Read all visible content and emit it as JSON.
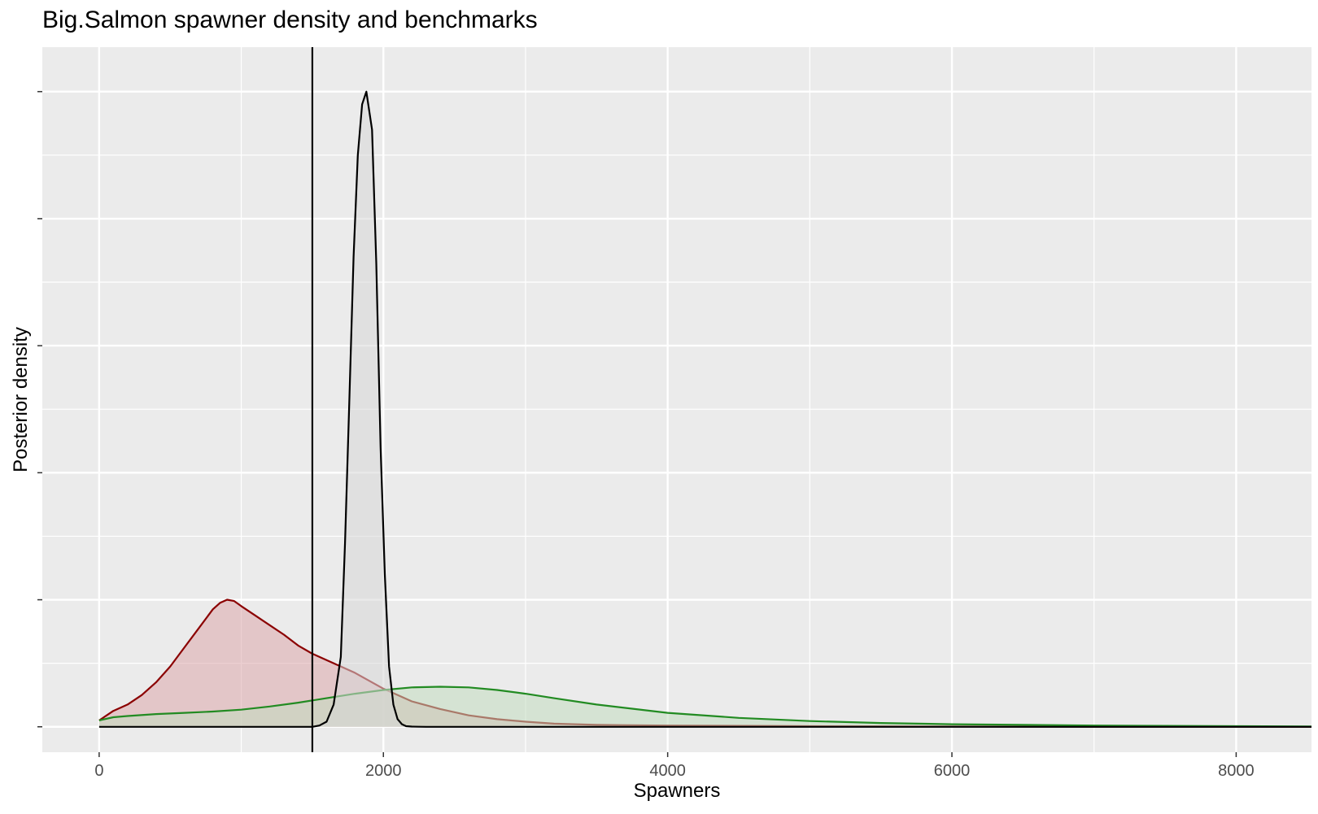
{
  "chart_data": {
    "type": "area",
    "title": "Big.Salmon spawner density and benchmarks",
    "xlabel": "Spawners",
    "ylabel": "Posterior density",
    "xlim": [
      -400,
      8530
    ],
    "ylim": [
      -0.04,
      1.07
    ],
    "x_ticks": [
      0,
      2000,
      4000,
      6000,
      8000
    ],
    "x_tick_labels": [
      "0",
      "2000",
      "4000",
      "6000",
      "8000"
    ],
    "y_tick_labels": [],
    "x_minor_ticks": [
      1000,
      3000,
      5000,
      7000
    ],
    "y_major_gridlines": [
      0,
      0.2,
      0.4,
      0.6,
      0.8,
      1.0
    ],
    "y_minor_gridlines": [
      0.1,
      0.3,
      0.5,
      0.7,
      0.9
    ],
    "background": "#ebebeb",
    "grid": true,
    "legend": "none",
    "vline": {
      "x": 1500,
      "color": "#000000"
    },
    "series": [
      {
        "color": "#8b0000",
        "fill": "#dca8ab",
        "x": [
          0,
          100,
          200,
          300,
          400,
          500,
          600,
          700,
          800,
          850,
          900,
          950,
          1000,
          1100,
          1200,
          1300,
          1400,
          1500,
          1600,
          1800,
          2000,
          2200,
          2400,
          2600,
          2800,
          3000,
          3200,
          3500,
          4000,
          5000,
          6000,
          7000,
          8000,
          8530
        ],
        "values": [
          0.01,
          0.025,
          0.035,
          0.05,
          0.07,
          0.095,
          0.125,
          0.155,
          0.185,
          0.195,
          0.2,
          0.198,
          0.19,
          0.175,
          0.16,
          0.145,
          0.128,
          0.115,
          0.105,
          0.085,
          0.06,
          0.04,
          0.028,
          0.018,
          0.012,
          0.008,
          0.005,
          0.003,
          0.002,
          0.001,
          0.0005,
          0.0002,
          0.0001,
          0
        ]
      },
      {
        "color": "#228b22",
        "fill": "#c3dcbf",
        "x": [
          0,
          100,
          200,
          400,
          600,
          800,
          1000,
          1200,
          1400,
          1600,
          1800,
          2000,
          2200,
          2400,
          2600,
          2800,
          3000,
          3200,
          3500,
          4000,
          4500,
          5000,
          5500,
          6000,
          6500,
          7000,
          7500,
          8000,
          8530
        ],
        "values": [
          0.01,
          0.015,
          0.017,
          0.02,
          0.022,
          0.024,
          0.027,
          0.032,
          0.038,
          0.045,
          0.052,
          0.058,
          0.062,
          0.063,
          0.062,
          0.058,
          0.052,
          0.045,
          0.035,
          0.022,
          0.014,
          0.009,
          0.006,
          0.004,
          0.003,
          0.002,
          0.0015,
          0.001,
          0.0005
        ]
      },
      {
        "color": "#000000",
        "fill": "#d7d7d7",
        "x": [
          0,
          1500,
          1550,
          1600,
          1650,
          1700,
          1730,
          1760,
          1790,
          1820,
          1850,
          1880,
          1920,
          1950,
          1980,
          2010,
          2040,
          2070,
          2100,
          2130,
          2160,
          2200,
          2250,
          2300,
          2400,
          8530
        ],
        "values": [
          0,
          0,
          0.002,
          0.008,
          0.035,
          0.11,
          0.29,
          0.51,
          0.74,
          0.9,
          0.98,
          1.0,
          0.94,
          0.73,
          0.44,
          0.24,
          0.095,
          0.035,
          0.012,
          0.004,
          0.001,
          0.0003,
          0.0001,
          0,
          0,
          0
        ]
      }
    ]
  }
}
